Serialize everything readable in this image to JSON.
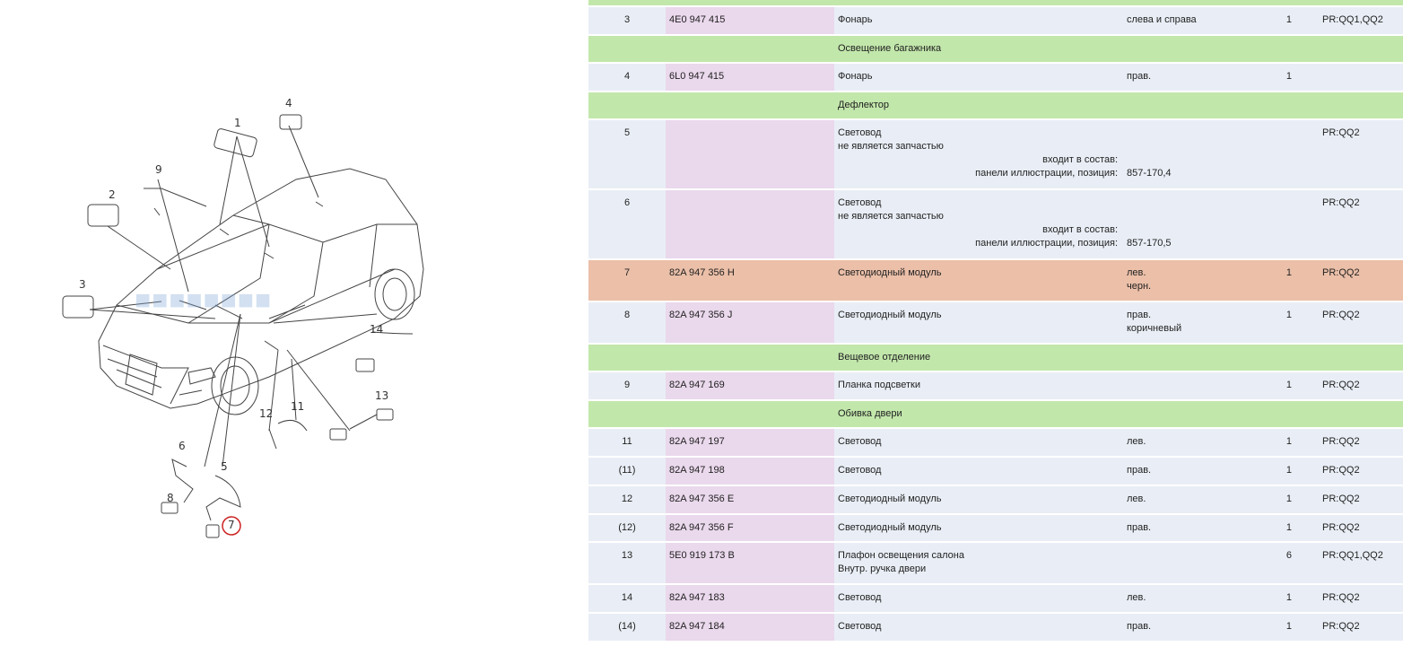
{
  "diagram": {
    "callouts": [
      "1",
      "2",
      "3",
      "4",
      "5",
      "6",
      "7",
      "8",
      "9",
      "11",
      "12",
      "13",
      "14"
    ],
    "highlight_color": "#cc2222"
  },
  "table": {
    "rows": [
      {
        "type": "normal",
        "pos": "3",
        "part": "4E0 947 415",
        "name": "Фонарь",
        "note": "слева и справа",
        "qty": "1",
        "pr": "PR:QQ1,QQ2"
      },
      {
        "type": "header",
        "name": "Освещение багажника"
      },
      {
        "type": "normal",
        "pos": "4",
        "part": "6L0 947 415",
        "name": "Фонарь",
        "note": "прав.",
        "qty": "1",
        "pr": ""
      },
      {
        "type": "header",
        "name": "Дефлектор"
      },
      {
        "type": "normal",
        "pos": "5",
        "part": "",
        "name": "Световод",
        "name2": "не является запчастью",
        "sub1": "входит в состав:",
        "sub2": "панели иллюстрации, позиция:",
        "subval": "857-170,4",
        "qty": "",
        "pr": "PR:QQ2"
      },
      {
        "type": "normal",
        "pos": "6",
        "part": "",
        "name": "Световод",
        "name2": "не является запчастью",
        "sub1": "входит в состав:",
        "sub2": "панели иллюстрации, позиция:",
        "subval": "857-170,5",
        "qty": "",
        "pr": "PR:QQ2"
      },
      {
        "type": "highlight",
        "pos": "7",
        "part": "82A 947 356 H",
        "name": "Светодиодный модуль",
        "note": "лев.",
        "note2": "черн.",
        "qty": "1",
        "pr": "PR:QQ2"
      },
      {
        "type": "normal",
        "pos": "8",
        "part": "82A 947 356 J",
        "name": "Светодиодный модуль",
        "note": "прав.",
        "note2": "коричневый",
        "qty": "1",
        "pr": "PR:QQ2"
      },
      {
        "type": "header",
        "name": "Вещевое отделение"
      },
      {
        "type": "normal",
        "pos": "9",
        "part": "82A 947 169",
        "name": "Планка подсветки",
        "note": "",
        "qty": "1",
        "pr": "PR:QQ2"
      },
      {
        "type": "header",
        "name": "Обивка двери"
      },
      {
        "type": "normal",
        "pos": "11",
        "part": "82A 947 197",
        "name": "Световод",
        "note": "лев.",
        "qty": "1",
        "pr": "PR:QQ2"
      },
      {
        "type": "normal",
        "pos": "(11)",
        "part": "82A 947 198",
        "name": "Световод",
        "note": "прав.",
        "qty": "1",
        "pr": "PR:QQ2"
      },
      {
        "type": "normal",
        "pos": "12",
        "part": "82A 947 356 E",
        "name": "Светодиодный модуль",
        "note": "лев.",
        "qty": "1",
        "pr": "PR:QQ2"
      },
      {
        "type": "normal",
        "pos": "(12)",
        "part": "82A 947 356 F",
        "name": "Светодиодный модуль",
        "note": "прав.",
        "qty": "1",
        "pr": "PR:QQ2"
      },
      {
        "type": "normal",
        "pos": "13",
        "part": "5E0 919 173 B",
        "name": "Плафон освещения салона",
        "name2": "Внутр. ручка двери",
        "note": "",
        "qty": "6",
        "pr": "PR:QQ1,QQ2"
      },
      {
        "type": "normal",
        "pos": "14",
        "part": "82A 947 183",
        "name": "Световод",
        "note": "лев.",
        "qty": "1",
        "pr": "PR:QQ2"
      },
      {
        "type": "normal",
        "pos": "(14)",
        "part": "82A 947 184",
        "name": "Световод",
        "note": "прав.",
        "qty": "1",
        "pr": "PR:QQ2"
      }
    ]
  }
}
